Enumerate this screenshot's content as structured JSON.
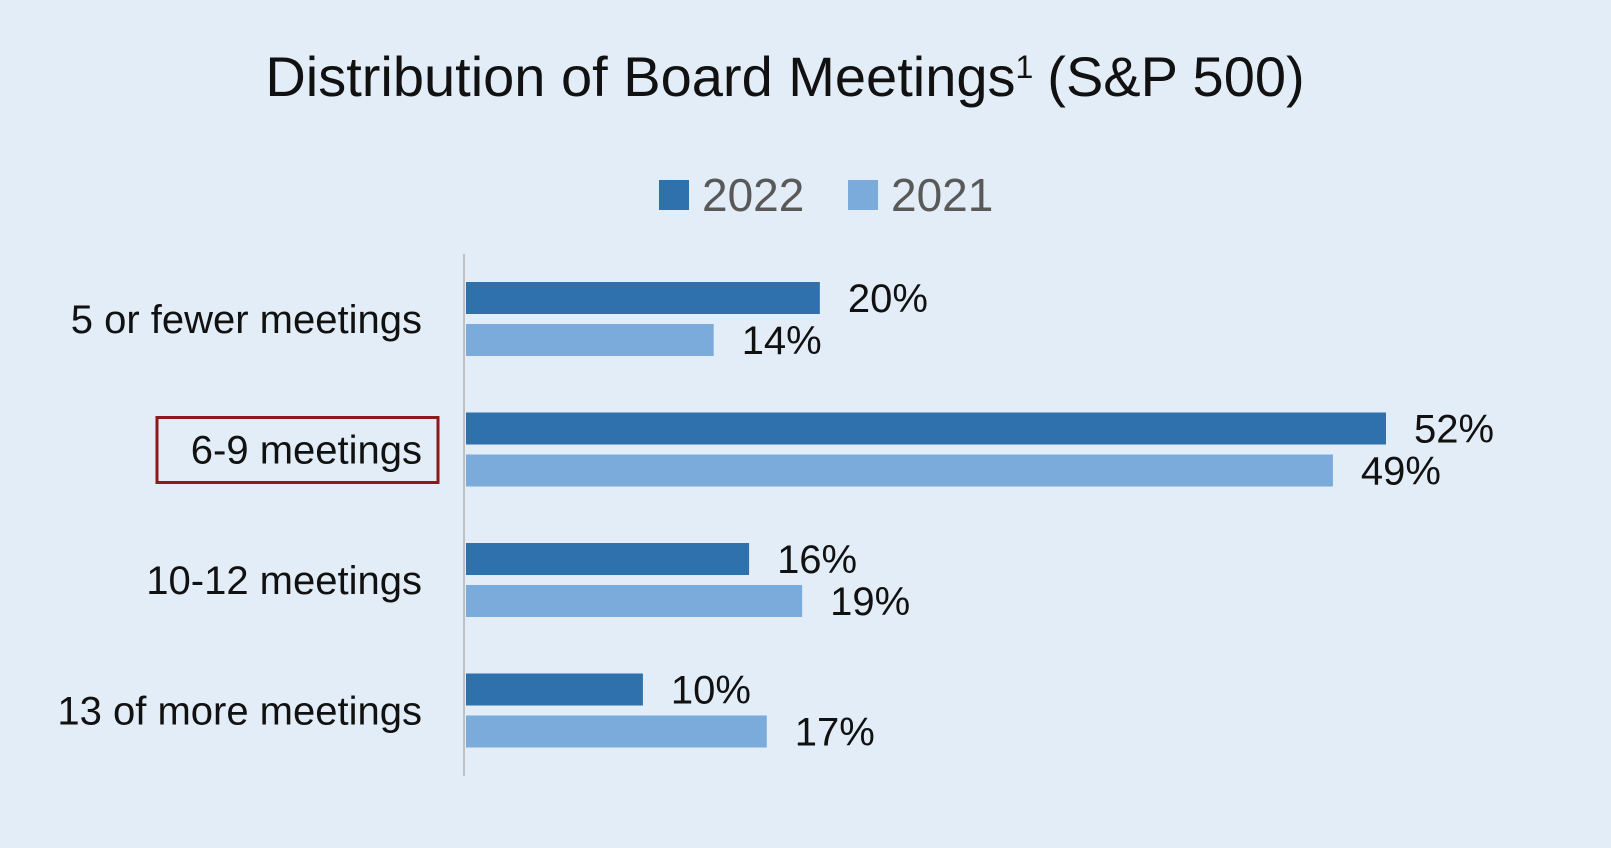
{
  "chart_data": {
    "type": "bar",
    "orientation": "horizontal",
    "title": "Distribution of Board Meetings",
    "title_superscript": "1",
    "title_suffix": "(S&P 500)",
    "categories": [
      "5 or fewer meetings",
      "6-9 meetings",
      "10-12 meetings",
      "13 of more meetings"
    ],
    "series": [
      {
        "name": "2022",
        "values": [
          20,
          52,
          16,
          10
        ],
        "labels": [
          "20%",
          "52%",
          "16%",
          "10%"
        ],
        "color": "#2e71ad"
      },
      {
        "name": "2021",
        "values": [
          14,
          49,
          19,
          17
        ],
        "labels": [
          "14%",
          "49%",
          "19%",
          "17%"
        ],
        "color": "#7aabda"
      }
    ],
    "value_unit": "%",
    "xlim": [
      0,
      52
    ],
    "grid": false,
    "legend_position": "top-center",
    "highlighted_category": "6-9 meetings",
    "highlight_color": "#8b1a1a",
    "axis_color": "#bfbfbf",
    "background_color": "#e3edf7"
  }
}
